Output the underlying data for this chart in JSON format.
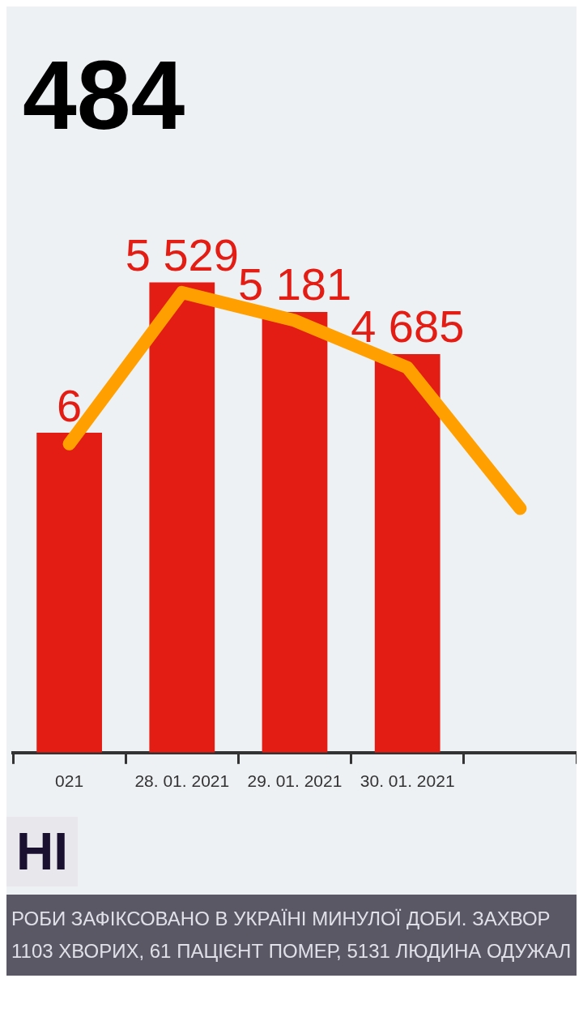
{
  "chart_data": {
    "type": "bar",
    "title": "484",
    "categories": [
      "021",
      "28. 01. 2021",
      "29. 01. 2021",
      "30. 01. 2021",
      null
    ],
    "series": [
      {
        "color": "#e31c14",
        "values": [
          3760,
          5529,
          5181,
          4685,
          null
        ],
        "value_labels": [
          null,
          "5 529",
          "5 181",
          "4 685",
          null
        ]
      },
      {
        "type": "line",
        "color": "#ffa000",
        "values": [
          3630,
          5410,
          5080,
          4526,
          2870
        ]
      }
    ],
    "relative": false,
    "legend": false,
    "marker": "none",
    "line_style": "solid",
    "annotations": [
      {
        "text": "6",
        "x": "021",
        "y": 3760
      },
      "НІ",
      "РОБИ  ЗАФІКСОВАНО В УКРАЇНІ МИНУЛОЇ ДОБИ. ЗАХВОР",
      "1103 ХВОРИХ, 61 ПАЦІЄНТ ПОМЕР, 5131 ЛЮДИНА ОДУЖАЛ"
    ]
  }
}
